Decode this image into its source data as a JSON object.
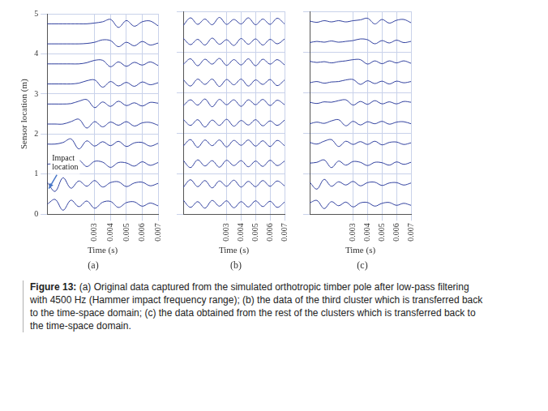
{
  "chart_data": [
    {
      "type": "line",
      "panel_label": "(a)",
      "xlabel": "Time (s)",
      "ylabel": "Sensor location (m)",
      "xlim": [
        0,
        0.007
      ],
      "xticks": [
        0.003,
        0.004,
        0.005,
        0.006,
        0.007
      ],
      "ylim": [
        0,
        5
      ],
      "yticks": [
        0,
        1,
        2,
        3,
        4,
        5
      ],
      "grid": true,
      "color": "#2f3f9e",
      "annotation": {
        "text": "Impact location",
        "x": 0,
        "y": 0.6
      },
      "x": [
        0,
        0.0005,
        0.001,
        0.0015,
        0.002,
        0.0025,
        0.003,
        0.0035,
        0.004,
        0.0045,
        0.005,
        0.0055,
        0.006,
        0.0065,
        0.007
      ],
      "traces": [
        {
          "location": 0.25,
          "values": [
            0,
            0.12,
            -0.15,
            0.1,
            -0.06,
            0.08,
            -0.1,
            0.05,
            0.07,
            -0.08,
            0.04,
            0.06,
            -0.05,
            0.03,
            -0.04
          ]
        },
        {
          "location": 0.75,
          "values": [
            0.05,
            -0.18,
            0.16,
            -0.1,
            0.08,
            -0.05,
            0.09,
            -0.07,
            0.04,
            0.06,
            -0.06,
            0.03,
            0.05,
            -0.04,
            0.02
          ]
        },
        {
          "location": 1.25,
          "values": [
            0,
            0.02,
            0.12,
            -0.14,
            0.09,
            -0.06,
            0.07,
            0.05,
            -0.08,
            0.04,
            0.03,
            -0.05,
            0.06,
            -0.03,
            0.04
          ]
        },
        {
          "location": 1.75,
          "values": [
            0,
            0,
            0.04,
            0.13,
            -0.12,
            0.08,
            -0.05,
            0.06,
            -0.04,
            0.07,
            -0.06,
            0.03,
            0.04,
            -0.05,
            0.02
          ]
        },
        {
          "location": 2.25,
          "values": [
            0,
            0,
            0,
            0.06,
            0.12,
            -0.1,
            0.06,
            -0.07,
            0.05,
            -0.03,
            0.06,
            -0.05,
            0.03,
            0.04,
            -0.03
          ]
        },
        {
          "location": 2.75,
          "values": [
            0,
            0,
            0,
            0.01,
            0.07,
            0.11,
            -0.09,
            0.05,
            -0.06,
            0.07,
            -0.04,
            0.03,
            -0.05,
            0.04,
            0.02
          ]
        },
        {
          "location": 3.25,
          "values": [
            0,
            0,
            0,
            0,
            0.02,
            0.08,
            0.1,
            -0.08,
            0.06,
            -0.05,
            0.04,
            -0.06,
            0.05,
            -0.02,
            0.03
          ]
        },
        {
          "location": 3.75,
          "values": [
            0,
            0,
            0,
            0,
            0,
            0.03,
            0.09,
            0.09,
            -0.07,
            0.05,
            -0.06,
            0.04,
            -0.03,
            0.05,
            -0.04
          ]
        },
        {
          "location": 4.25,
          "values": [
            0,
            0,
            0,
            0,
            0,
            0.01,
            0.04,
            0.1,
            0.08,
            -0.07,
            0.04,
            -0.05,
            0.06,
            -0.03,
            0.02
          ]
        },
        {
          "location": 4.75,
          "values": [
            0,
            0,
            0,
            0,
            0,
            0,
            0.02,
            0.05,
            0.11,
            -0.09,
            0.08,
            -0.06,
            0.05,
            0.07,
            -0.05
          ]
        }
      ]
    },
    {
      "type": "line",
      "panel_label": "(b)",
      "xlabel": "Time (s)",
      "tick_labels": "x",
      "xlim": [
        0,
        0.007
      ],
      "xticks": [
        0.003,
        0.004,
        0.005,
        0.006,
        0.007
      ],
      "ylim": [
        0,
        5
      ],
      "yticks": [
        0,
        1,
        2,
        3,
        4,
        5
      ],
      "grid": true,
      "color": "#2f3f9e",
      "x": [
        0,
        0.0005,
        0.001,
        0.0015,
        0.002,
        0.0025,
        0.003,
        0.0035,
        0.004,
        0.0045,
        0.005,
        0.0055,
        0.006,
        0.0065,
        0.007
      ],
      "traces": [
        {
          "location": 0.25,
          "values": [
            0.1,
            -0.08,
            0.06,
            -0.1,
            0.09,
            -0.05,
            0.08,
            -0.09,
            0.06,
            -0.07,
            0.08,
            -0.06,
            0.07,
            -0.08,
            0.05
          ]
        },
        {
          "location": 0.75,
          "values": [
            -0.09,
            0.1,
            -0.07,
            0.08,
            -0.1,
            0.07,
            -0.06,
            0.09,
            -0.08,
            0.06,
            -0.07,
            0.08,
            -0.06,
            0.07,
            -0.05
          ]
        },
        {
          "location": 1.25,
          "values": [
            0.08,
            -0.1,
            0.09,
            -0.06,
            0.07,
            -0.09,
            0.08,
            -0.05,
            0.07,
            -0.08,
            0.06,
            -0.07,
            0.08,
            -0.05,
            0.06
          ]
        },
        {
          "location": 1.75,
          "values": [
            -0.07,
            0.09,
            -0.1,
            0.08,
            -0.06,
            0.08,
            -0.09,
            0.07,
            -0.05,
            0.08,
            -0.07,
            0.06,
            -0.08,
            0.07,
            -0.06
          ]
        },
        {
          "location": 2.25,
          "values": [
            0.09,
            -0.06,
            0.08,
            -0.1,
            0.07,
            -0.06,
            0.09,
            -0.08,
            0.06,
            -0.05,
            0.08,
            -0.07,
            0.05,
            -0.06,
            0.07
          ]
        },
        {
          "location": 2.75,
          "values": [
            -0.08,
            0.07,
            -0.06,
            0.09,
            -0.1,
            0.08,
            -0.05,
            0.07,
            -0.09,
            0.07,
            -0.05,
            0.08,
            -0.07,
            0.06,
            -0.05
          ]
        },
        {
          "location": 3.25,
          "values": [
            0.07,
            -0.09,
            0.08,
            -0.05,
            0.08,
            -0.1,
            0.07,
            -0.06,
            0.08,
            -0.09,
            0.06,
            -0.05,
            0.07,
            -0.08,
            0.06
          ]
        },
        {
          "location": 3.75,
          "values": [
            -0.06,
            0.08,
            -0.09,
            0.07,
            -0.05,
            0.09,
            -0.08,
            0.06,
            -0.07,
            0.08,
            -0.09,
            0.07,
            -0.05,
            0.06,
            -0.07
          ]
        },
        {
          "location": 4.25,
          "values": [
            0.09,
            -0.07,
            0.06,
            -0.08,
            0.09,
            -0.06,
            0.05,
            -0.09,
            0.08,
            -0.06,
            0.07,
            -0.08,
            0.06,
            -0.05,
            0.07
          ]
        },
        {
          "location": 4.75,
          "values": [
            -0.1,
            0.09,
            -0.07,
            0.06,
            -0.08,
            0.1,
            -0.07,
            0.05,
            -0.06,
            0.09,
            -0.08,
            0.06,
            -0.07,
            0.08,
            -0.06
          ]
        }
      ]
    },
    {
      "type": "line",
      "panel_label": "(c)",
      "xlabel": "Time (s)",
      "tick_labels": "x",
      "xlim": [
        0,
        0.007
      ],
      "xticks": [
        0.003,
        0.004,
        0.005,
        0.006,
        0.007
      ],
      "ylim": [
        0,
        5
      ],
      "yticks": [
        0,
        1,
        2,
        3,
        4,
        5
      ],
      "grid": true,
      "color": "#2f3f9e",
      "x": [
        0,
        0.0005,
        0.001,
        0.0015,
        0.002,
        0.0025,
        0.003,
        0.0035,
        0.004,
        0.0045,
        0.005,
        0.0055,
        0.006,
        0.0065,
        0.007
      ],
      "traces": [
        {
          "location": 0.25,
          "values": [
            0.03,
            0.09,
            -0.11,
            0.06,
            -0.04,
            0.05,
            -0.07,
            0.03,
            0.04,
            -0.05,
            0.02,
            0.04,
            -0.03,
            0.02,
            -0.03
          ]
        },
        {
          "location": 0.75,
          "values": [
            0.04,
            -0.13,
            0.11,
            -0.06,
            0.05,
            -0.03,
            0.06,
            -0.05,
            0.03,
            0.04,
            -0.04,
            0.02,
            0.03,
            -0.03,
            0.02
          ]
        },
        {
          "location": 1.25,
          "values": [
            0.01,
            0.03,
            0.09,
            -0.1,
            0.06,
            -0.04,
            0.05,
            0.03,
            -0.05,
            0.03,
            0.02,
            -0.04,
            0.04,
            -0.02,
            0.03
          ]
        },
        {
          "location": 1.75,
          "values": [
            0.02,
            -0.02,
            0.05,
            0.09,
            -0.08,
            0.05,
            -0.03,
            0.04,
            -0.03,
            0.05,
            -0.04,
            0.02,
            0.03,
            -0.03,
            0.01
          ]
        },
        {
          "location": 2.25,
          "values": [
            -0.02,
            0.02,
            -0.01,
            0.05,
            0.08,
            -0.07,
            0.04,
            -0.05,
            0.03,
            -0.02,
            0.04,
            -0.03,
            0.02,
            0.03,
            -0.02
          ]
        },
        {
          "location": 2.75,
          "values": [
            0.01,
            -0.02,
            0.02,
            0.01,
            0.05,
            0.07,
            -0.06,
            0.03,
            -0.04,
            0.05,
            -0.03,
            0.02,
            -0.03,
            0.03,
            0.01
          ]
        },
        {
          "location": 3.25,
          "values": [
            -0.01,
            0.02,
            -0.02,
            0.01,
            0.02,
            0.06,
            0.07,
            -0.05,
            0.04,
            -0.03,
            0.03,
            -0.04,
            0.03,
            -0.01,
            0.02
          ]
        },
        {
          "location": 3.75,
          "values": [
            0.02,
            -0.01,
            0.01,
            -0.02,
            0.01,
            0.03,
            0.06,
            0.06,
            -0.05,
            0.03,
            -0.04,
            0.03,
            -0.02,
            0.03,
            -0.03
          ]
        },
        {
          "location": 4.25,
          "values": [
            -0.02,
            0.01,
            -0.01,
            0.02,
            -0.01,
            0.01,
            0.03,
            0.07,
            0.05,
            -0.05,
            0.03,
            -0.03,
            0.04,
            -0.02,
            0.01
          ]
        },
        {
          "location": 4.75,
          "values": [
            0.01,
            -0.02,
            0.02,
            -0.01,
            0.02,
            -0.01,
            0.02,
            0.04,
            0.08,
            -0.06,
            0.05,
            -0.04,
            0.03,
            0.05,
            -0.03
          ]
        }
      ]
    }
  ],
  "caption": {
    "label": "Figure 13:",
    "text": "(a) Original data captured from the simulated orthotropic timber pole after low-pass filtering with 4500 Hz (Hammer impact frequency range); (b) the data of the third cluster which is transferred back to the time-space domain; (c) the data obtained from the rest of the clusters which is transferred back to the time-space domain."
  }
}
